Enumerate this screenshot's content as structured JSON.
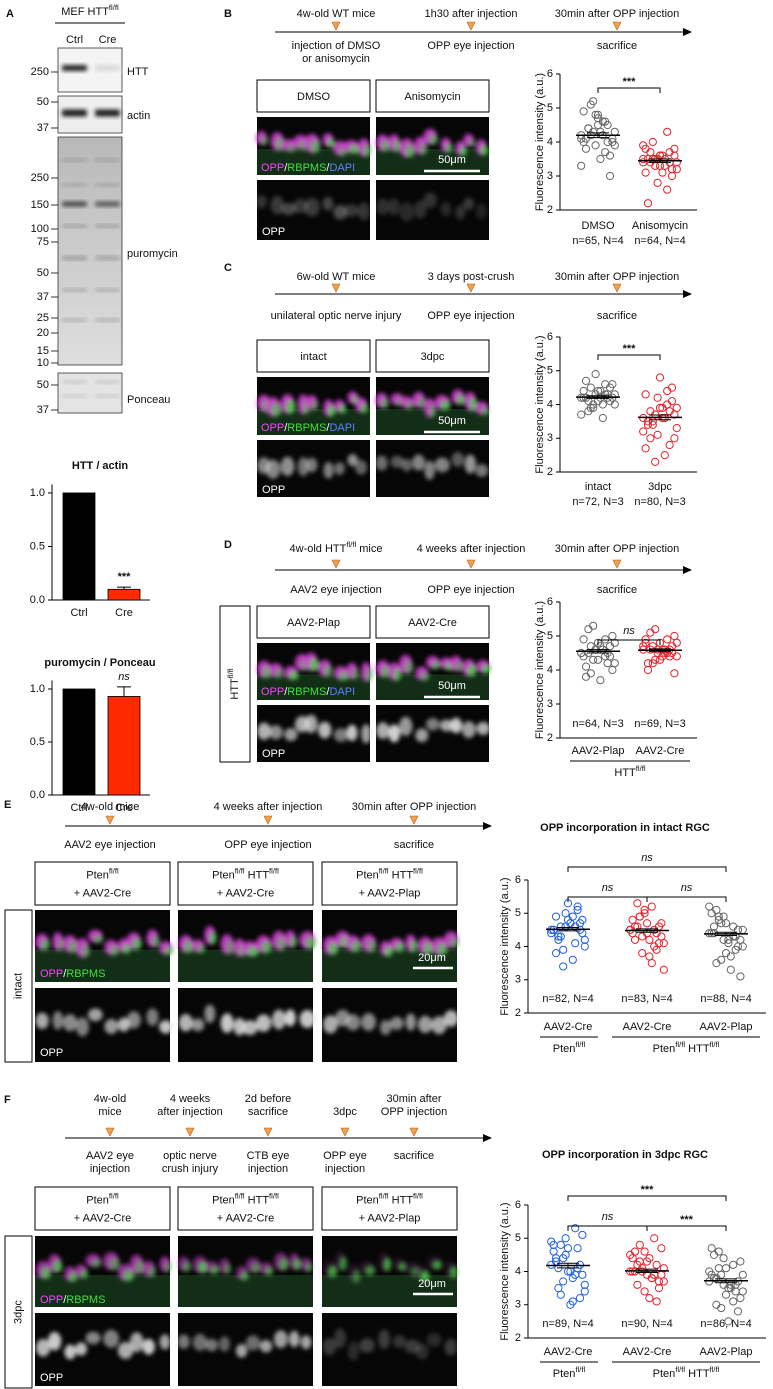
{
  "panel_labels": [
    "A",
    "B",
    "C",
    "D",
    "E",
    "F"
  ],
  "blot": {
    "title": [
      "MEF HTT",
      {
        "sup": "fl/fl"
      }
    ],
    "lanes": [
      "Ctrl",
      "Cre"
    ],
    "strips": [
      {
        "label": "HTT",
        "markers": [
          250
        ]
      },
      {
        "label": "actin",
        "markers": [
          50,
          37
        ]
      },
      {
        "label": "puromycin",
        "markers": [
          250,
          150,
          100,
          75,
          50,
          37,
          25,
          20,
          15,
          10
        ]
      },
      {
        "label": "Ponceau",
        "markers": [
          50,
          37
        ]
      }
    ]
  },
  "timelines": [
    {
      "above": [
        [
          "4w-old WT mice"
        ],
        [
          "1h30 after  injection"
        ],
        [
          "30min after OPP injection"
        ]
      ],
      "below": [
        [
          "injection of DMSO",
          "or anisomycin"
        ],
        [
          "OPP eye injection"
        ],
        [
          "sacrifice"
        ]
      ]
    },
    {
      "above": [
        [
          "6w-old WT mice"
        ],
        [
          "3 days post-crush"
        ],
        [
          "30min after OPP injection"
        ]
      ],
      "below": [
        [
          "unilateral optic nerve injury"
        ],
        [
          "OPP eye injection"
        ],
        [
          "sacrifice"
        ]
      ]
    },
    {
      "above": [
        [
          [
            "4w-old HTT",
            {
              "sup": "fl/fl"
            },
            " mice"
          ]
        ],
        [
          "4 weeks after injection"
        ],
        [
          "30min after OPP injection"
        ]
      ],
      "below": [
        [
          "AAV2 eye injection"
        ],
        [
          "OPP eye injection"
        ],
        [
          "sacrifice"
        ]
      ]
    },
    {
      "above": [
        [
          "4w-old mice"
        ],
        [
          "4 weeks after injection"
        ],
        [
          "30min after OPP injection"
        ]
      ],
      "below": [
        [
          "AAV2 eye injection"
        ],
        [
          "OPP eye injection"
        ],
        [
          "sacrifice"
        ]
      ]
    },
    {
      "above": [
        [
          "4w-old",
          "mice"
        ],
        [
          "4 weeks",
          "after injection"
        ],
        [
          "2d before",
          "sacrifice"
        ],
        [
          "3dpc"
        ],
        [
          "30min after",
          "OPP injection"
        ]
      ],
      "below": [
        [
          "AAV2 eye",
          "injection"
        ],
        [
          "optic nerve",
          "crush injury"
        ],
        [
          "CTB eye",
          "injection"
        ],
        [
          "OPP eye",
          "injection"
        ],
        [
          "sacrifice"
        ]
      ]
    }
  ],
  "image_panels": [
    {
      "headers": [
        "DMSO",
        "Anisomycin"
      ],
      "overlay_label": [
        "OPP",
        "/",
        "RBPMS",
        "/",
        "DAPI"
      ],
      "overlay_colors": [
        "#ff40ff",
        "#ffffff",
        "#40e040",
        "#ffffff",
        "#6080ff"
      ],
      "scale_bar": "50μm",
      "gray_label": "OPP"
    },
    {
      "headers": [
        "intact",
        "3dpc"
      ],
      "overlay_label": [
        "OPP",
        "/",
        "RBPMS",
        "/",
        "DAPI"
      ],
      "overlay_colors": [
        "#ff40ff",
        "#ffffff",
        "#40e040",
        "#ffffff",
        "#6080ff"
      ],
      "scale_bar": "50μm",
      "gray_label": "OPP"
    },
    {
      "headers": [
        "AAV2-Plap",
        "AAV2-Cre"
      ],
      "overlay_label": [
        "OPP",
        "/",
        "RBPMS",
        "/",
        "DAPI"
      ],
      "overlay_colors": [
        "#ff40ff",
        "#ffffff",
        "#40e040",
        "#ffffff",
        "#6080ff"
      ],
      "scale_bar": "50μm",
      "gray_label": "OPP",
      "side_label": [
        "HTT",
        {
          "sup": "fl/fl"
        }
      ]
    },
    {
      "headers": [
        {
          "line1": [
            "Pten",
            {
              "sup": "fl/fl"
            }
          ],
          "line2": "+ AAV2-Cre"
        },
        {
          "line1": [
            "Pten",
            {
              "sup": "fl/fl"
            },
            " HTT",
            {
              "sup": "fl/fl"
            }
          ],
          "line2": "+ AAV2-Cre"
        },
        {
          "line1": [
            "Pten",
            {
              "sup": "fl/fl"
            },
            " HTT",
            {
              "sup": "fl/fl"
            }
          ],
          "line2": "+ AAV2-Plap"
        }
      ],
      "overlay_label": [
        "OPP",
        "/",
        "RBPMS"
      ],
      "overlay_colors": [
        "#ff40ff",
        "#ffffff",
        "#40e040"
      ],
      "scale_bar": "20μm",
      "gray_label": "OPP",
      "side_label": "intact"
    },
    {
      "headers": [
        {
          "line1": [
            "Pten",
            {
              "sup": "fl/fl"
            }
          ],
          "line2": "+ AAV2-Cre"
        },
        {
          "line1": [
            "Pten",
            {
              "sup": "fl/fl"
            },
            " HTT",
            {
              "sup": "fl/fl"
            }
          ],
          "line2": "+ AAV2-Cre"
        },
        {
          "line1": [
            "Pten",
            {
              "sup": "fl/fl"
            },
            " HTT",
            {
              "sup": "fl/fl"
            }
          ],
          "line2": "+ AAV2-Plap"
        }
      ],
      "overlay_label": [
        "OPP",
        "/",
        "RBPMS"
      ],
      "overlay_colors": [
        "#ff40ff",
        "#ffffff",
        "#40e040"
      ],
      "scale_bar": "20μm",
      "gray_label": "OPP",
      "side_label": "3dpc"
    }
  ],
  "chart_data": [
    {
      "type": "bar",
      "title": "HTT / actin",
      "categories": [
        "Ctrl",
        "Cre"
      ],
      "values": [
        1.0,
        0.1
      ],
      "errors": [
        0,
        0.02
      ],
      "colors": [
        "#000000",
        "#ff2a00"
      ],
      "ylim": [
        0,
        1.08
      ],
      "yticks": [
        {
          "value": 0,
          "label": "0.0"
        },
        {
          "value": 0.5,
          "label": "0.5"
        },
        {
          "value": 1,
          "label": "1.0"
        }
      ],
      "significance": "***"
    },
    {
      "type": "bar",
      "title": "puromycin / Ponceau",
      "categories": [
        "Ctrl",
        "Cre"
      ],
      "values": [
        1.0,
        0.93
      ],
      "errors": [
        0,
        0.09
      ],
      "colors": [
        "#000000",
        "#ff2a00"
      ],
      "ylim": [
        0,
        1.08
      ],
      "yticks": [
        {
          "value": 0,
          "label": "0.0"
        },
        {
          "value": 0.5,
          "label": "0.5"
        },
        {
          "value": 1,
          "label": "1.0"
        }
      ],
      "significance": "ns"
    },
    {
      "type": "dot",
      "ylabel": "Fluorescence intensity (a.u.)",
      "categories": [
        "DMSO",
        "Anisomycin"
      ],
      "n_labels": [
        "n=65, N=4",
        "n=64, N=4"
      ],
      "colors": [
        "#666666",
        "#e8202a"
      ],
      "points": [
        [
          4.2,
          4.5,
          3.9,
          4.8,
          4.1,
          4.3,
          3.6,
          5.1,
          4.0,
          4.4,
          4.6,
          3.8,
          4.2,
          4.9,
          3.5,
          4.1,
          4.7,
          4.3,
          3.9,
          4.0,
          5.2,
          3.0,
          4.2,
          4.5,
          4.4,
          3.7,
          4.1,
          4.6,
          4.0,
          4.3,
          3.3,
          4.8
        ],
        [
          3.4,
          3.6,
          3.2,
          3.5,
          3.8,
          3.3,
          3.0,
          3.5,
          3.7,
          3.4,
          4.3,
          2.2,
          3.5,
          3.1,
          3.6,
          3.9,
          3.3,
          3.4,
          2.8,
          3.6,
          3.5,
          3.2,
          4.0,
          3.4,
          3.7,
          2.6,
          3.5,
          3.3,
          3.8,
          3.1,
          3.5,
          3.6
        ]
      ],
      "means": [
        4.2,
        3.45
      ],
      "sems": [
        0.07,
        0.05
      ],
      "ylim": [
        2,
        6
      ],
      "yticks": [
        2,
        3,
        4,
        5,
        6
      ],
      "significance": [
        "***"
      ]
    },
    {
      "type": "dot",
      "ylabel": "Fluorescence intensity (a.u.)",
      "categories": [
        "intact",
        "3dpc"
      ],
      "n_labels": [
        "n=72, N=3",
        "n=80, N=3"
      ],
      "colors": [
        "#666666",
        "#e8202a"
      ],
      "points": [
        [
          4.2,
          4.4,
          4.0,
          4.3,
          4.6,
          3.9,
          4.1,
          4.5,
          4.2,
          3.8,
          4.3,
          4.7,
          4.0,
          4.2,
          4.4,
          3.7,
          4.1,
          4.3,
          4.9,
          4.2,
          4.0,
          4.5,
          3.9,
          4.3,
          4.1,
          4.6,
          4.2,
          3.6,
          4.4,
          4.2
        ],
        [
          3.6,
          3.9,
          3.3,
          4.2,
          3.0,
          3.7,
          4.5,
          3.4,
          2.8,
          3.8,
          4.0,
          3.5,
          2.5,
          4.3,
          3.6,
          3.2,
          4.8,
          3.9,
          3.1,
          3.7,
          2.3,
          4.1,
          3.5,
          3.8,
          3.0,
          4.4,
          3.4,
          3.6,
          2.7,
          3.9
        ]
      ],
      "means": [
        4.22,
        3.62
      ],
      "sems": [
        0.04,
        0.07
      ],
      "ylim": [
        2,
        6
      ],
      "yticks": [
        2,
        3,
        4,
        5,
        6
      ],
      "significance": [
        "***"
      ]
    },
    {
      "type": "dot",
      "ylabel": "Fluorescence intensity (a.u.)",
      "categories": [
        "AAV2-Plap",
        "AAV2-Cre"
      ],
      "n_labels": [
        "n=64, N=3",
        "n=69, N=3"
      ],
      "colors": [
        "#666666",
        "#e8202a"
      ],
      "points": [
        [
          4.5,
          4.8,
          4.2,
          4.6,
          5.0,
          4.3,
          4.7,
          3.9,
          4.5,
          5.2,
          4.4,
          4.1,
          4.6,
          4.9,
          3.7,
          4.5,
          4.3,
          4.8,
          4.6,
          4.0,
          5.3,
          4.4,
          4.7,
          4.2,
          4.5,
          4.9,
          3.8,
          4.6,
          4.4,
          4.7
        ],
        [
          4.6,
          4.8,
          4.4,
          4.5,
          5.0,
          4.3,
          4.7,
          4.2,
          4.6,
          5.1,
          4.5,
          4.0,
          4.6,
          4.9,
          4.4,
          4.7,
          4.3,
          4.8,
          4.6,
          3.9,
          5.2,
          4.5,
          4.7,
          4.4,
          4.6,
          4.9,
          4.2,
          4.5,
          4.8,
          4.6
        ]
      ],
      "means": [
        4.55,
        4.58
      ],
      "sems": [
        0.05,
        0.04
      ],
      "ylim": [
        2,
        6
      ],
      "yticks": [
        2,
        3,
        4,
        5,
        6
      ],
      "significance": [
        "ns"
      ],
      "genotype_labels": [
        [
          "HTT",
          {
            "sup": "fl/fl"
          }
        ]
      ]
    },
    {
      "type": "dot",
      "title": "OPP incorporation in intact RGC",
      "ylabel": "Fluorescence intensity (a.u.)",
      "categories": [
        "AAV2-Cre",
        "AAV2-Cre",
        "AAV2-Plap"
      ],
      "n_labels": [
        "n=82, N=4",
        "n=83, N=4",
        "n=88, N=4"
      ],
      "colors": [
        "#2060e0",
        "#e8202a",
        "#666666"
      ],
      "points": [
        [
          4.5,
          4.8,
          4.2,
          5.0,
          4.4,
          3.9,
          4.7,
          4.6,
          5.2,
          4.3,
          4.1,
          4.9,
          3.6,
          4.5,
          4.7,
          4.4,
          5.3,
          4.0,
          4.6,
          4.8,
          3.4,
          4.5,
          4.3,
          5.1,
          4.2,
          4.6,
          3.8,
          4.9,
          4.5,
          4.7
        ],
        [
          4.5,
          4.7,
          4.1,
          5.1,
          4.3,
          3.8,
          4.6,
          4.9,
          4.4,
          5.3,
          4.0,
          4.6,
          3.5,
          4.8,
          4.2,
          4.5,
          4.4,
          3.3,
          5.0,
          4.7,
          4.3,
          4.1,
          4.9,
          3.9,
          4.6,
          4.5,
          4.2,
          5.2,
          4.4,
          3.7
        ],
        [
          4.4,
          4.7,
          4.0,
          4.9,
          4.2,
          3.6,
          4.5,
          4.8,
          3.9,
          5.1,
          4.3,
          4.6,
          3.3,
          4.4,
          4.1,
          5.2,
          3.8,
          4.5,
          4.2,
          3.1,
          4.7,
          4.0,
          4.9,
          4.3,
          3.5,
          4.6,
          4.4,
          3.7,
          5.0,
          4.2
        ]
      ],
      "means": [
        4.52,
        4.48,
        4.38
      ],
      "sems": [
        0.05,
        0.05,
        0.05
      ],
      "ylim": [
        2,
        6
      ],
      "yticks": [
        2,
        3,
        4,
        5,
        6
      ],
      "significance": [
        "ns",
        "ns",
        "ns"
      ],
      "genotype_labels": [
        [
          "Pten",
          {
            "sup": "fl/fl"
          }
        ],
        [
          "Pten",
          {
            "sup": "fl/fl"
          },
          " HTT",
          {
            "sup": "fl/fl"
          }
        ]
      ]
    },
    {
      "type": "dot",
      "title": "OPP incorporation in 3dpc RGC",
      "ylabel": "Fluorescence intensity (a.u.)",
      "categories": [
        "AAV2-Cre",
        "AAV2-Cre",
        "AAV2-Plap"
      ],
      "n_labels": [
        "n=89, N=4",
        "n=90, N=4",
        "n=86, N=4"
      ],
      "colors": [
        "#2060e0",
        "#e8202a",
        "#666666"
      ],
      "points": [
        [
          4.2,
          4.7,
          3.6,
          5.0,
          3.9,
          4.4,
          3.2,
          4.8,
          4.1,
          3.5,
          5.3,
          4.3,
          3.8,
          4.6,
          3.0,
          4.9,
          4.0,
          3.4,
          4.5,
          5.1,
          3.7,
          4.2,
          3.3,
          4.7,
          4.1,
          3.9,
          4.4,
          3.1,
          4.8,
          4.0
        ],
        [
          4.0,
          4.3,
          3.7,
          4.6,
          3.9,
          4.1,
          3.5,
          4.8,
          4.2,
          3.6,
          5.0,
          4.0,
          3.8,
          4.4,
          3.2,
          4.5,
          3.9,
          4.1,
          3.4,
          4.7,
          4.0,
          3.7,
          4.3,
          3.1,
          4.2,
          3.9,
          4.6,
          3.8,
          4.0,
          4.4
        ],
        [
          3.7,
          4.1,
          3.4,
          4.4,
          3.2,
          3.9,
          2.8,
          4.6,
          3.6,
          3.0,
          4.2,
          3.8,
          3.5,
          4.7,
          2.5,
          4.0,
          3.3,
          3.9,
          3.6,
          4.3,
          2.9,
          3.7,
          4.1,
          3.4,
          3.8,
          3.1,
          4.5,
          3.6,
          3.9,
          3.5
        ]
      ],
      "means": [
        4.18,
        4.02,
        3.72
      ],
      "sems": [
        0.07,
        0.05,
        0.06
      ],
      "ylim": [
        2,
        6
      ],
      "yticks": [
        2,
        3,
        4,
        5,
        6
      ],
      "significance": [
        "***",
        "ns",
        "***"
      ],
      "genotype_labels": [
        [
          "Pten",
          {
            "sup": "fl/fl"
          }
        ],
        [
          "Pten",
          {
            "sup": "fl/fl"
          },
          " HTT",
          {
            "sup": "fl/fl"
          }
        ]
      ]
    }
  ]
}
